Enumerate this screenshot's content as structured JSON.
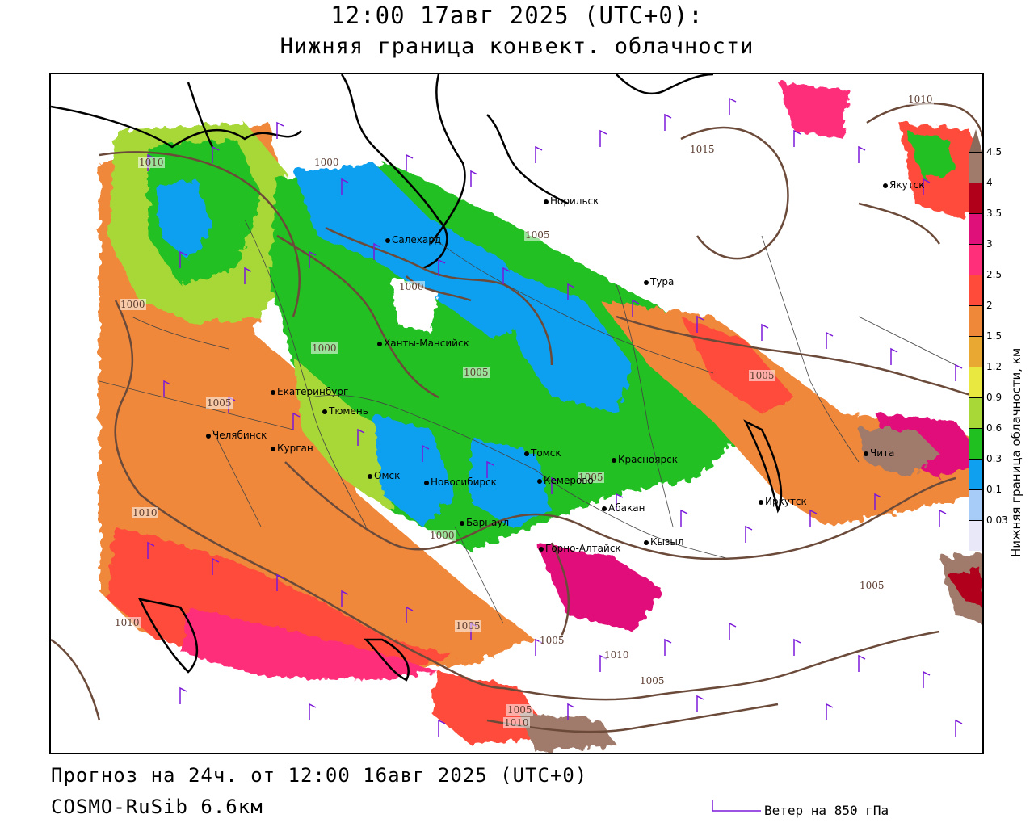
{
  "title": {
    "line1": "12:00 17авг 2025 (UTC+0):",
    "line2": "Нижняя граница конвект. облачности"
  },
  "footer": {
    "forecast": "Прогноз на 24ч. от 12:00 16авг 2025 (UTC+0)",
    "model": "COSMO-RuSib 6.6км",
    "wind_legend": "Ветер на 850 гПа"
  },
  "colorbar": {
    "title": "Нижняя граница облачности, км",
    "levels": [
      {
        "label": "4.5",
        "color": "#a07a6a"
      },
      {
        "label": "4",
        "color": "#b0001a"
      },
      {
        "label": "3.5",
        "color": "#e0107a"
      },
      {
        "label": "3",
        "color": "#ff2f7a"
      },
      {
        "label": "2.5",
        "color": "#ff4b3a"
      },
      {
        "label": "2",
        "color": "#f0883a"
      },
      {
        "label": "1.5",
        "color": "#e8a832"
      },
      {
        "label": "1.2",
        "color": "#e8e840"
      },
      {
        "label": "0.9",
        "color": "#a8d838"
      },
      {
        "label": "0.6",
        "color": "#20c020"
      },
      {
        "label": "0.3",
        "color": "#10a0f0"
      },
      {
        "label": "0.1",
        "color": "#a8ccf8"
      },
      {
        "label": "0.03",
        "color": "#e8e8f8"
      }
    ],
    "top_arrow_color": "#8a6a5a"
  },
  "cities": [
    {
      "name": "Норильск"
    },
    {
      "name": "Якутск"
    },
    {
      "name": "Салехард"
    },
    {
      "name": "Тура"
    },
    {
      "name": "Ханты-Мансийск"
    },
    {
      "name": "Екатеринбург"
    },
    {
      "name": "Тюмень"
    },
    {
      "name": "Челябинск"
    },
    {
      "name": "Курган"
    },
    {
      "name": "Омск"
    },
    {
      "name": "Новосибирск"
    },
    {
      "name": "Томск"
    },
    {
      "name": "Кемерово"
    },
    {
      "name": "Красноярск"
    },
    {
      "name": "Абакан"
    },
    {
      "name": "Барнаул"
    },
    {
      "name": "Горно-Алтайск"
    },
    {
      "name": "Кызыл"
    },
    {
      "name": "Иркутск"
    },
    {
      "name": "Чита"
    }
  ],
  "isobars": [
    "1010",
    "1000",
    "1000",
    "1000",
    "1000",
    "1005",
    "1000",
    "1005",
    "1015",
    "1005",
    "1005",
    "1005",
    "1010",
    "1005",
    "1010",
    "1005",
    "1005",
    "1010",
    "1005",
    "1010",
    "1010",
    "1005"
  ],
  "palette": {
    "isobar": "#6b4a3a",
    "wind": "#7b18d8",
    "coast": "#000000",
    "border": "#444444"
  }
}
